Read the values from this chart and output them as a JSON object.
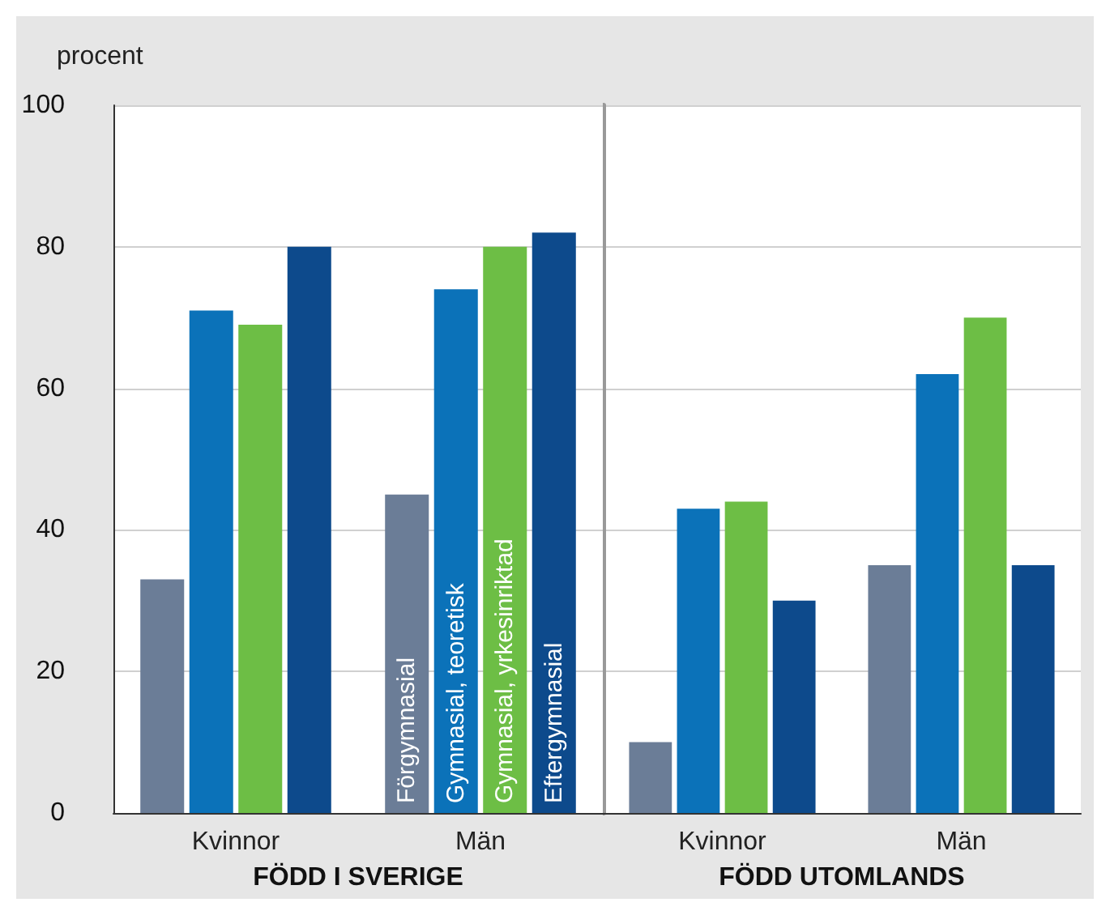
{
  "chart_data": [
    {
      "type": "bar",
      "xlabel": "FÖDD I SVERIGE",
      "ylabel": "procent",
      "categories": [
        "Kvinnor",
        "Män"
      ],
      "series": [
        {
          "name": "Förgymnasial",
          "color": "#6b7d97",
          "values": [
            33,
            45
          ]
        },
        {
          "name": "Gymnasial, teoretisk",
          "color": "#0b72b9",
          "values": [
            71,
            74
          ]
        },
        {
          "name": "Gymnasial, yrkesinriktad",
          "color": "#6dbe45",
          "values": [
            69,
            80
          ]
        },
        {
          "name": "Eftergymnasial",
          "color": "#0d4a8c",
          "values": [
            80,
            82
          ]
        }
      ],
      "ylim": [
        0,
        100
      ],
      "yticks": [
        0,
        20,
        40,
        60,
        80,
        100
      ],
      "grid": "y"
    },
    {
      "type": "bar",
      "xlabel": "FÖDD UTOMLANDS",
      "categories": [
        "Kvinnor",
        "Män"
      ],
      "series": [
        {
          "color": "#6b7d97",
          "values": [
            10,
            35
          ]
        },
        {
          "color": "#0b72b9",
          "values": [
            43,
            62
          ]
        },
        {
          "color": "#6dbe45",
          "values": [
            44,
            70
          ]
        },
        {
          "color": "#0d4a8c",
          "values": [
            30,
            35
          ]
        }
      ],
      "ylim": [
        0,
        100
      ],
      "yticks": [
        0,
        20,
        40,
        60,
        80,
        100
      ],
      "grid": "y",
      "tick_labels": "x"
    }
  ]
}
